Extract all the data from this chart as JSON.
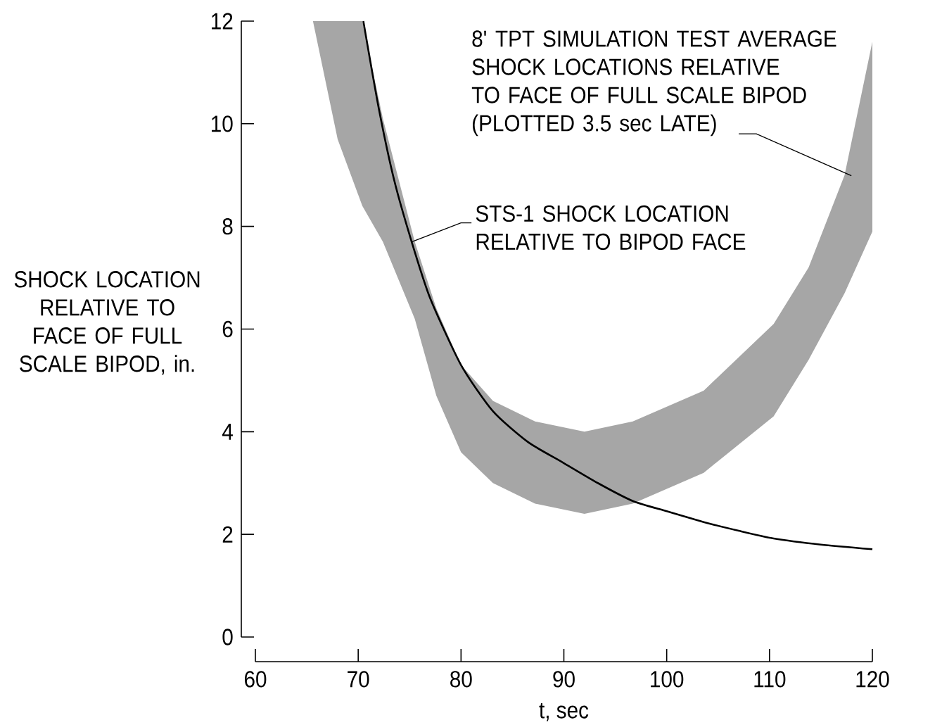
{
  "chart_data": {
    "type": "line",
    "xlabel": "t, sec",
    "ylabel": "SHOCK LOCATION RELATIVE TO FACE OF FULL SCALE BIPOD, in.",
    "xlim": [
      60,
      120
    ],
    "ylim": [
      0,
      12
    ],
    "xticks": [
      60,
      70,
      80,
      90,
      100,
      110,
      120
    ],
    "yticks": [
      0,
      2,
      4,
      6,
      8,
      10,
      12
    ],
    "grid": false,
    "series": [
      {
        "type": "area",
        "color": "#a6a6a6",
        "x": [
          65.6,
          70.4,
          72.4,
          75.5,
          77.6,
          80,
          83.1,
          87.2,
          92,
          96.7,
          103.6,
          110.4,
          113.8,
          117.3,
          120,
          120,
          117.3,
          113.8,
          110.4,
          103.6,
          96.7,
          92,
          87.2,
          83.1,
          80,
          77.6,
          75.5,
          72.4,
          70.4,
          68.0
        ],
        "values": [
          12,
          12,
          10.1,
          7.7,
          6.4,
          5.3,
          4.6,
          4.2,
          4.0,
          4.2,
          4.8,
          6.1,
          7.2,
          9.0,
          11.6,
          7.9,
          6.7,
          5.4,
          4.3,
          3.2,
          2.6,
          2.4,
          2.6,
          3.0,
          3.6,
          4.7,
          6.2,
          7.7,
          8.4,
          9.7
        ]
      },
      {
        "color": "#000000",
        "x": [
          70.5,
          72,
          73.5,
          75.2,
          77,
          80,
          83.1,
          86.5,
          89.9,
          93.3,
          96.7,
          100,
          103.6,
          107,
          110.4,
          115,
          120
        ],
        "values": [
          12,
          10.3,
          8.9,
          7.7,
          6.6,
          5.3,
          4.4,
          3.8,
          3.4,
          3.0,
          2.65,
          2.45,
          2.24,
          2.07,
          1.92,
          1.8,
          1.71
        ]
      }
    ],
    "annotations": [
      {
        "text": "STS-1 SHOCK LOCATION RELATIVE TO BIPOD FACE",
        "x": 75.2,
        "y": 7.7
      },
      "8' TPT SIMULATION TEST AVERAGE SHOCK LOCATIONS RELATIVE TO FACE OF FULL SCALE BIPOD (PLOTTED 3.5 sec LATE)"
    ]
  }
}
